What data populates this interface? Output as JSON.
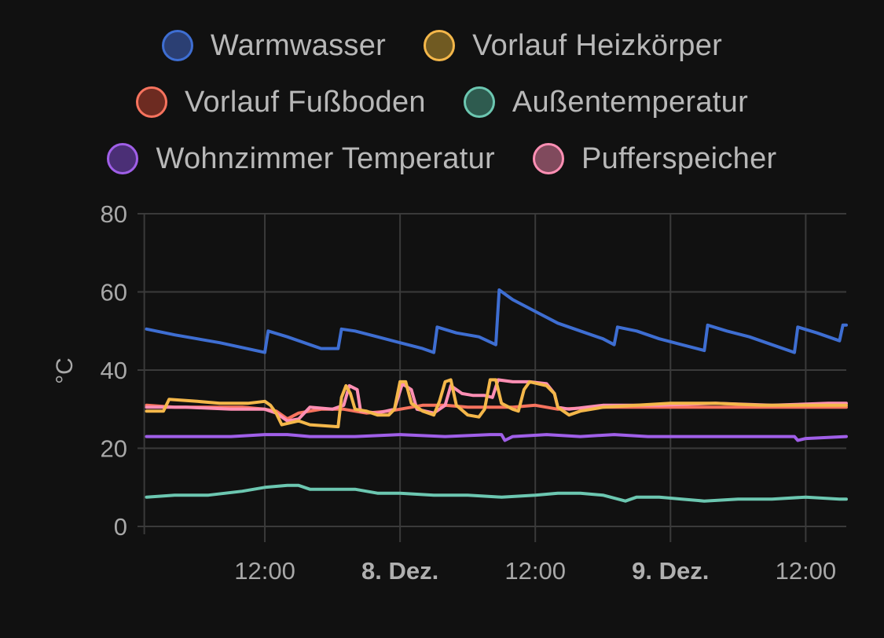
{
  "chart_data": {
    "type": "line",
    "ylabel": "°C",
    "ylim": [
      0,
      80
    ],
    "yticks": [
      "0",
      "20",
      "40",
      "60",
      "80"
    ],
    "xlim_hours": [
      -11.3,
      51.6
    ],
    "xticks": [
      {
        "h": 0,
        "label": "12:00",
        "bold": false
      },
      {
        "h": 12,
        "label": "8. Dez.",
        "bold": true
      },
      {
        "h": 24,
        "label": "12:00",
        "bold": false
      },
      {
        "h": 36,
        "label": "9. Dez.",
        "bold": true
      },
      {
        "h": 48,
        "label": "12:00",
        "bold": false
      }
    ],
    "grid": true,
    "legend_position": "top",
    "series": [
      {
        "name": "Warmwasser",
        "color": "#3e6ed2",
        "fill": "#2b3f73",
        "points": [
          [
            -10.5,
            50.5
          ],
          [
            -8,
            49
          ],
          [
            -4,
            47
          ],
          [
            0,
            44.5
          ],
          [
            0.3,
            50
          ],
          [
            2,
            48.5
          ],
          [
            4,
            46.5
          ],
          [
            5,
            45.5
          ],
          [
            6.5,
            45.5
          ],
          [
            6.8,
            50.5
          ],
          [
            8,
            50
          ],
          [
            10,
            48.5
          ],
          [
            12,
            47
          ],
          [
            14,
            45.5
          ],
          [
            15,
            44.5
          ],
          [
            15.3,
            51
          ],
          [
            17,
            49.5
          ],
          [
            19,
            48.5
          ],
          [
            20.5,
            46.5
          ],
          [
            20.8,
            60.5
          ],
          [
            22,
            58
          ],
          [
            24,
            55
          ],
          [
            26,
            52
          ],
          [
            28,
            50
          ],
          [
            30,
            48
          ],
          [
            31,
            46.5
          ],
          [
            31.3,
            51
          ],
          [
            33,
            50
          ],
          [
            35,
            48
          ],
          [
            37,
            46.5
          ],
          [
            39,
            45
          ],
          [
            39.3,
            51.5
          ],
          [
            41,
            50
          ],
          [
            43,
            48.5
          ],
          [
            45,
            46.5
          ],
          [
            47,
            44.5
          ],
          [
            47.3,
            51
          ],
          [
            49,
            49.5
          ],
          [
            51,
            47.5
          ],
          [
            51.3,
            51.5
          ],
          [
            51.6,
            51.5
          ]
        ]
      },
      {
        "name": "Vorlauf Heizkörper",
        "color": "#f4b74a",
        "fill": "#705a22",
        "points": [
          [
            -10.5,
            29.5
          ],
          [
            -9,
            29.5
          ],
          [
            -8.5,
            32.5
          ],
          [
            -6,
            32
          ],
          [
            -4,
            31.5
          ],
          [
            -1.5,
            31.5
          ],
          [
            0,
            32
          ],
          [
            0.5,
            31
          ],
          [
            1,
            29
          ],
          [
            1.5,
            26
          ],
          [
            3,
            27
          ],
          [
            4,
            26
          ],
          [
            6.5,
            25.5
          ],
          [
            6.8,
            33
          ],
          [
            7.2,
            36
          ],
          [
            7.6,
            34
          ],
          [
            8,
            30
          ],
          [
            9,
            29.5
          ],
          [
            10,
            28.5
          ],
          [
            11,
            28.5
          ],
          [
            11.5,
            30
          ],
          [
            12,
            37
          ],
          [
            12.5,
            37
          ],
          [
            13,
            31.5
          ],
          [
            14,
            29.5
          ],
          [
            15,
            28.5
          ],
          [
            15.5,
            32
          ],
          [
            16,
            37
          ],
          [
            16.5,
            37.5
          ],
          [
            17,
            31
          ],
          [
            18,
            28.5
          ],
          [
            19,
            28
          ],
          [
            19.5,
            30
          ],
          [
            20,
            37.5
          ],
          [
            20.5,
            37.5
          ],
          [
            21,
            31.5
          ],
          [
            22,
            30
          ],
          [
            22.5,
            29.5
          ],
          [
            23,
            35
          ],
          [
            23.5,
            37
          ],
          [
            25,
            36
          ],
          [
            25.7,
            34
          ],
          [
            26,
            30.5
          ],
          [
            27,
            28.5
          ],
          [
            28,
            29.5
          ],
          [
            30,
            30.5
          ],
          [
            33,
            31
          ],
          [
            36,
            31.5
          ],
          [
            40,
            31.5
          ],
          [
            44,
            31
          ],
          [
            48,
            31
          ],
          [
            51.6,
            31
          ]
        ]
      },
      {
        "name": "Vorlauf Fußboden",
        "color": "#f7735e",
        "fill": "#6d2b21",
        "points": [
          [
            -10.5,
            31
          ],
          [
            -8,
            30.5
          ],
          [
            -5,
            30.5
          ],
          [
            -2,
            30.5
          ],
          [
            0,
            30
          ],
          [
            1,
            29.5
          ],
          [
            2,
            27.5
          ],
          [
            3,
            29
          ],
          [
            5,
            30
          ],
          [
            7,
            30
          ],
          [
            9,
            29
          ],
          [
            11,
            29.5
          ],
          [
            12,
            30
          ],
          [
            13,
            30.5
          ],
          [
            14,
            31
          ],
          [
            16,
            31
          ],
          [
            18,
            30.5
          ],
          [
            20,
            30.5
          ],
          [
            22,
            30.5
          ],
          [
            24,
            31
          ],
          [
            26,
            30
          ],
          [
            30,
            30.5
          ],
          [
            35,
            30.5
          ],
          [
            40,
            30.5
          ],
          [
            45,
            30.5
          ],
          [
            50,
            30.5
          ],
          [
            51.6,
            30.5
          ]
        ]
      },
      {
        "name": "Außentemperatur",
        "color": "#6cc7b1",
        "fill": "#2e5b4f",
        "points": [
          [
            -10.5,
            7.5
          ],
          [
            -8,
            8
          ],
          [
            -5,
            8
          ],
          [
            -2,
            9
          ],
          [
            0,
            10
          ],
          [
            2,
            10.5
          ],
          [
            3,
            10.5
          ],
          [
            4,
            9.5
          ],
          [
            6,
            9.5
          ],
          [
            8,
            9.5
          ],
          [
            10,
            8.5
          ],
          [
            12,
            8.5
          ],
          [
            15,
            8
          ],
          [
            18,
            8
          ],
          [
            21,
            7.5
          ],
          [
            24,
            8
          ],
          [
            26,
            8.5
          ],
          [
            28,
            8.5
          ],
          [
            30,
            8
          ],
          [
            32,
            6.5
          ],
          [
            33,
            7.5
          ],
          [
            35,
            7.5
          ],
          [
            37,
            7
          ],
          [
            39,
            6.5
          ],
          [
            42,
            7
          ],
          [
            45,
            7
          ],
          [
            48,
            7.5
          ],
          [
            51,
            7
          ],
          [
            51.6,
            7
          ]
        ]
      },
      {
        "name": "Wohnzimmer Temperatur",
        "color": "#a05fe8",
        "fill": "#4b2f76",
        "points": [
          [
            -10.5,
            23
          ],
          [
            -7,
            23
          ],
          [
            -3,
            23
          ],
          [
            0,
            23.5
          ],
          [
            2,
            23.5
          ],
          [
            4,
            23
          ],
          [
            8,
            23
          ],
          [
            12,
            23.5
          ],
          [
            16,
            23
          ],
          [
            20,
            23.5
          ],
          [
            21,
            23.5
          ],
          [
            21.3,
            22
          ],
          [
            22,
            23
          ],
          [
            25,
            23.5
          ],
          [
            28,
            23
          ],
          [
            31,
            23.5
          ],
          [
            34,
            23
          ],
          [
            38,
            23
          ],
          [
            42,
            23
          ],
          [
            46,
            23
          ],
          [
            47,
            23
          ],
          [
            47.3,
            22
          ],
          [
            48,
            22.5
          ],
          [
            51.6,
            23
          ]
        ]
      },
      {
        "name": "Pufferspeicher",
        "color": "#ff8fb4",
        "fill": "#804a5d",
        "points": [
          [
            -10.5,
            30.5
          ],
          [
            -7,
            30.5
          ],
          [
            -3,
            30
          ],
          [
            0,
            30
          ],
          [
            1,
            29
          ],
          [
            2,
            27
          ],
          [
            3,
            27.5
          ],
          [
            4,
            30.5
          ],
          [
            6,
            30
          ],
          [
            7,
            31
          ],
          [
            7.5,
            36
          ],
          [
            8.2,
            35
          ],
          [
            8.5,
            29.5
          ],
          [
            10,
            29
          ],
          [
            11.5,
            30
          ],
          [
            12.2,
            36.5
          ],
          [
            13,
            35
          ],
          [
            13.5,
            30
          ],
          [
            15,
            29
          ],
          [
            16,
            31
          ],
          [
            16.5,
            36
          ],
          [
            17.5,
            34
          ],
          [
            18.5,
            33.5
          ],
          [
            19.5,
            33.5
          ],
          [
            20.2,
            33
          ],
          [
            20.7,
            37.5
          ],
          [
            22,
            37
          ],
          [
            23.5,
            37
          ],
          [
            25,
            36.5
          ],
          [
            25.7,
            34
          ],
          [
            26,
            30.5
          ],
          [
            27,
            30
          ],
          [
            30,
            31
          ],
          [
            35,
            31
          ],
          [
            40,
            31.5
          ],
          [
            45,
            31
          ],
          [
            50,
            31.5
          ],
          [
            51.6,
            31.5
          ]
        ]
      }
    ]
  }
}
